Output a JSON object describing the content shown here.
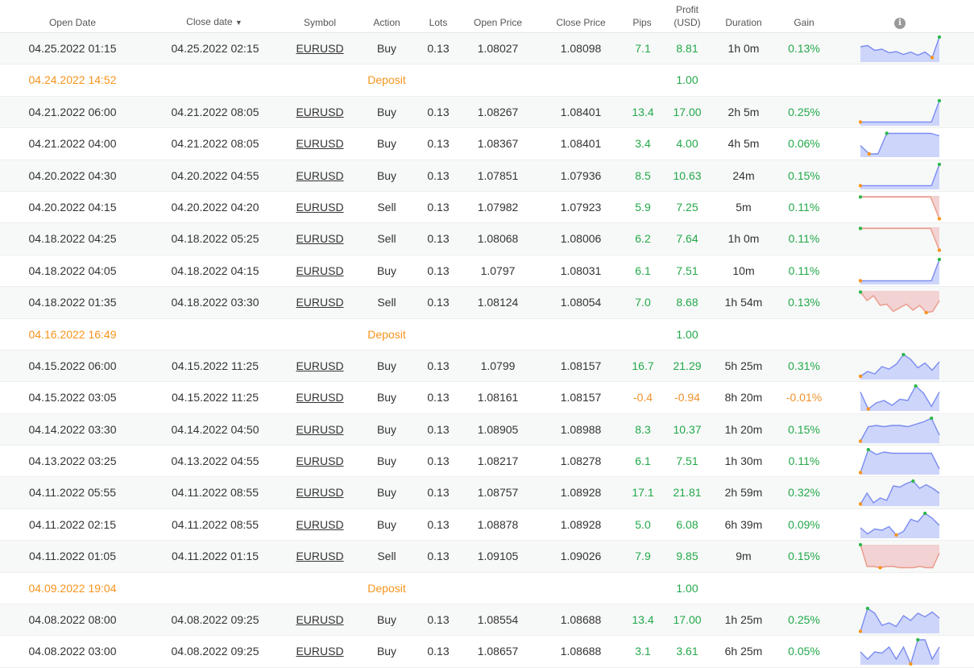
{
  "headers": {
    "open_date": "Open Date",
    "close_date": "Close date",
    "sort_arrow": "▼",
    "symbol": "Symbol",
    "action": "Action",
    "lots": "Lots",
    "open_price": "Open Price",
    "close_price": "Close Price",
    "pips": "Pips",
    "profit_line1": "Profit",
    "profit_line2": "(USD)",
    "duration": "Duration",
    "gain": "Gain",
    "info_icon": "i"
  },
  "colors": {
    "positive": "#23a84a",
    "negative": "#f0922b",
    "deposit": "#f7941d",
    "buy_fill": "#cdd5fb",
    "buy_line": "#7b8cf0",
    "sell_fill": "#f2d2d2",
    "sell_line": "#e99b8a"
  },
  "rows": [
    {
      "type": "trade",
      "open": "04.25.2022 01:15",
      "close": "04.25.2022 02:15",
      "symbol": "EURUSD",
      "action": "Buy",
      "lots": "0.13",
      "open_price": "1.08027",
      "close_price": "1.08098",
      "pips": "7.1",
      "profit": "8.81",
      "duration": "1h 0m",
      "gain": "0.13%",
      "sign": "pos",
      "spark": [
        0.4,
        0.35,
        0.55,
        0.5,
        0.65,
        0.6,
        0.72,
        0.62,
        0.75,
        0.62,
        0.85,
        0.0
      ]
    },
    {
      "type": "deposit",
      "open": "04.24.2022 14:52",
      "label": "Deposit",
      "profit": "1.00"
    },
    {
      "type": "trade",
      "open": "04.21.2022 06:00",
      "close": "04.21.2022 08:05",
      "symbol": "EURUSD",
      "action": "Buy",
      "lots": "0.13",
      "open_price": "1.08267",
      "close_price": "1.08401",
      "pips": "13.4",
      "profit": "17.00",
      "duration": "2h 5m",
      "gain": "0.25%",
      "sign": "pos",
      "spark": [
        0.88,
        0.88,
        0.88,
        0.88,
        0.88,
        0.88,
        0.88,
        0.88,
        0.88,
        0.88,
        0.0
      ]
    },
    {
      "type": "trade",
      "open": "04.21.2022 04:00",
      "close": "04.21.2022 08:05",
      "symbol": "EURUSD",
      "action": "Buy",
      "lots": "0.13",
      "open_price": "1.08367",
      "close_price": "1.08401",
      "pips": "3.4",
      "profit": "4.00",
      "duration": "4h 5m",
      "gain": "0.06%",
      "sign": "pos",
      "spark": [
        0.55,
        0.9,
        0.9,
        0.05,
        0.05,
        0.05,
        0.05,
        0.05,
        0.05,
        0.15
      ]
    },
    {
      "type": "trade",
      "open": "04.20.2022 04:30",
      "close": "04.20.2022 04:55",
      "symbol": "EURUSD",
      "action": "Buy",
      "lots": "0.13",
      "open_price": "1.07851",
      "close_price": "1.07936",
      "pips": "8.5",
      "profit": "10.63",
      "duration": "24m",
      "gain": "0.15%",
      "sign": "pos",
      "spark": [
        0.88,
        0.88,
        0.88,
        0.88,
        0.88,
        0.88,
        0.88,
        0.88,
        0.88,
        0.88,
        0.0
      ]
    },
    {
      "type": "trade",
      "open": "04.20.2022 04:15",
      "close": "04.20.2022 04:20",
      "symbol": "EURUSD",
      "action": "Sell",
      "lots": "0.13",
      "open_price": "1.07982",
      "close_price": "1.07923",
      "pips": "5.9",
      "profit": "7.25",
      "duration": "5m",
      "gain": "0.11%",
      "sign": "pos",
      "spark": [
        0.05,
        0.05,
        0.05,
        0.05,
        0.05,
        0.05,
        0.05,
        0.05,
        0.05,
        0.95
      ]
    },
    {
      "type": "trade",
      "open": "04.18.2022 04:25",
      "close": "04.18.2022 05:25",
      "symbol": "EURUSD",
      "action": "Sell",
      "lots": "0.13",
      "open_price": "1.08068",
      "close_price": "1.08006",
      "pips": "6.2",
      "profit": "7.64",
      "duration": "1h 0m",
      "gain": "0.11%",
      "sign": "pos",
      "spark": [
        0.05,
        0.05,
        0.05,
        0.05,
        0.05,
        0.05,
        0.05,
        0.05,
        0.05,
        0.95
      ]
    },
    {
      "type": "trade",
      "open": "04.18.2022 04:05",
      "close": "04.18.2022 04:15",
      "symbol": "EURUSD",
      "action": "Buy",
      "lots": "0.13",
      "open_price": "1.0797",
      "close_price": "1.08031",
      "pips": "6.1",
      "profit": "7.51",
      "duration": "10m",
      "gain": "0.11%",
      "sign": "pos",
      "spark": [
        0.88,
        0.88,
        0.88,
        0.88,
        0.88,
        0.88,
        0.88,
        0.88,
        0.88,
        0.88,
        0.0
      ]
    },
    {
      "type": "trade",
      "open": "04.18.2022 01:35",
      "close": "04.18.2022 03:30",
      "symbol": "EURUSD",
      "action": "Sell",
      "lots": "0.13",
      "open_price": "1.08124",
      "close_price": "1.08054",
      "pips": "7.0",
      "profit": "8.68",
      "duration": "1h 54m",
      "gain": "0.13%",
      "sign": "pos",
      "spark": [
        0.05,
        0.4,
        0.2,
        0.6,
        0.55,
        0.85,
        0.7,
        0.55,
        0.8,
        0.6,
        0.9,
        0.85,
        0.4
      ]
    },
    {
      "type": "deposit",
      "open": "04.16.2022 16:49",
      "label": "Deposit",
      "profit": "1.00"
    },
    {
      "type": "trade",
      "open": "04.15.2022 06:00",
      "close": "04.15.2022 11:25",
      "symbol": "EURUSD",
      "action": "Buy",
      "lots": "0.13",
      "open_price": "1.0799",
      "close_price": "1.08157",
      "pips": "16.7",
      "profit": "21.29",
      "duration": "5h 25m",
      "gain": "0.31%",
      "sign": "pos",
      "spark": [
        0.9,
        0.7,
        0.8,
        0.5,
        0.6,
        0.4,
        0.0,
        0.2,
        0.55,
        0.35,
        0.65,
        0.3
      ]
    },
    {
      "type": "trade",
      "open": "04.15.2022 03:05",
      "close": "04.15.2022 11:25",
      "symbol": "EURUSD",
      "action": "Buy",
      "lots": "0.13",
      "open_price": "1.08161",
      "close_price": "1.08157",
      "pips": "-0.4",
      "profit": "-0.94",
      "duration": "8h 20m",
      "gain": "-0.01%",
      "sign": "neg",
      "spark": [
        0.25,
        0.95,
        0.7,
        0.6,
        0.8,
        0.55,
        0.6,
        0.0,
        0.3,
        0.85,
        0.25
      ]
    },
    {
      "type": "trade",
      "open": "04.14.2022 03:30",
      "close": "04.14.2022 04:50",
      "symbol": "EURUSD",
      "action": "Buy",
      "lots": "0.13",
      "open_price": "1.08905",
      "close_price": "1.08988",
      "pips": "8.3",
      "profit": "10.37",
      "duration": "1h 20m",
      "gain": "0.15%",
      "sign": "pos",
      "spark": [
        0.95,
        0.35,
        0.3,
        0.35,
        0.3,
        0.3,
        0.35,
        0.25,
        0.15,
        0.0,
        0.7
      ]
    },
    {
      "type": "trade",
      "open": "04.13.2022 03:25",
      "close": "04.13.2022 04:55",
      "symbol": "EURUSD",
      "action": "Buy",
      "lots": "0.13",
      "open_price": "1.08217",
      "close_price": "1.08278",
      "pips": "6.1",
      "profit": "7.51",
      "duration": "1h 30m",
      "gain": "0.11%",
      "sign": "pos",
      "spark": [
        0.95,
        0.0,
        0.2,
        0.1,
        0.15,
        0.15,
        0.15,
        0.15,
        0.15,
        0.15,
        0.8
      ]
    },
    {
      "type": "trade",
      "open": "04.11.2022 05:55",
      "close": "04.11.2022 08:55",
      "symbol": "EURUSD",
      "action": "Buy",
      "lots": "0.13",
      "open_price": "1.08757",
      "close_price": "1.08928",
      "pips": "17.1",
      "profit": "21.81",
      "duration": "2h 59m",
      "gain": "0.32%",
      "sign": "pos",
      "spark": [
        0.95,
        0.5,
        0.9,
        0.7,
        0.8,
        0.2,
        0.25,
        0.1,
        0.0,
        0.3,
        0.15,
        0.3,
        0.5
      ]
    },
    {
      "type": "trade",
      "open": "04.11.2022 02:15",
      "close": "04.11.2022 08:55",
      "symbol": "EURUSD",
      "action": "Buy",
      "lots": "0.13",
      "open_price": "1.08878",
      "close_price": "1.08928",
      "pips": "5.0",
      "profit": "6.08",
      "duration": "6h 39m",
      "gain": "0.09%",
      "sign": "pos",
      "spark": [
        0.6,
        0.85,
        0.65,
        0.7,
        0.55,
        0.9,
        0.75,
        0.25,
        0.35,
        0.0,
        0.2,
        0.5
      ]
    },
    {
      "type": "trade",
      "open": "04.11.2022 01:05",
      "close": "04.11.2022 01:15",
      "symbol": "EURUSD",
      "action": "Sell",
      "lots": "0.13",
      "open_price": "1.09105",
      "close_price": "1.09026",
      "pips": "7.9",
      "profit": "9.85",
      "duration": "9m",
      "gain": "0.15%",
      "sign": "pos",
      "spark": [
        0.0,
        0.9,
        0.9,
        0.95,
        0.9,
        0.9,
        0.95,
        0.95,
        0.95,
        0.9,
        0.95,
        0.95,
        0.35
      ]
    },
    {
      "type": "deposit",
      "open": "04.09.2022 19:04",
      "label": "Deposit",
      "profit": "1.00"
    },
    {
      "type": "trade",
      "open": "04.08.2022 08:00",
      "close": "04.08.2022 09:25",
      "symbol": "EURUSD",
      "action": "Buy",
      "lots": "0.13",
      "open_price": "1.08554",
      "close_price": "1.08688",
      "pips": "13.4",
      "profit": "17.00",
      "duration": "1h 25m",
      "gain": "0.25%",
      "sign": "pos",
      "spark": [
        0.95,
        0.0,
        0.2,
        0.7,
        0.6,
        0.75,
        0.3,
        0.5,
        0.2,
        0.35,
        0.15,
        0.4
      ]
    },
    {
      "type": "trade",
      "open": "04.08.2022 03:00",
      "close": "04.08.2022 09:25",
      "symbol": "EURUSD",
      "action": "Buy",
      "lots": "0.13",
      "open_price": "1.08657",
      "close_price": "1.08688",
      "pips": "3.1",
      "profit": "3.61",
      "duration": "6h 25m",
      "gain": "0.05%",
      "sign": "pos",
      "spark": [
        0.5,
        0.8,
        0.5,
        0.55,
        0.3,
        0.8,
        0.3,
        1.0,
        0.0,
        0.0,
        0.8,
        0.3
      ]
    }
  ]
}
